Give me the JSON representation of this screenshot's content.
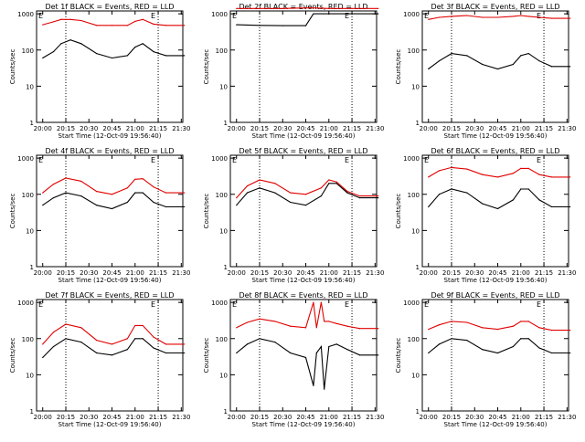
{
  "shared": {
    "xlabel": "Start Time (12-Oct-09 19:56:40)",
    "ylabel": "Counts/sec",
    "x_tick_labels": [
      "20:00",
      "20:15",
      "20:30",
      "20:45",
      "21:00",
      "21:15",
      "21:30"
    ],
    "y_tick_labels": [
      "1",
      "10",
      "100",
      "1000"
    ],
    "x_range_minutes": [
      0,
      95
    ],
    "y_range": [
      1,
      1200
    ],
    "y_scale": "log",
    "markers": [
      {
        "label": "E",
        "time": "20:15"
      },
      {
        "label": "E",
        "time": "21:15"
      }
    ],
    "series_colors": {
      "events": "#000000",
      "lld": "#e00000"
    }
  },
  "chart_data": [
    {
      "type": "line",
      "title": "Det 1f BLACK = Events, RED = LLD",
      "series": [
        {
          "values_time": [
            "20:00",
            "20:07",
            "20:12",
            "20:18",
            "20:25",
            "20:35",
            "20:45",
            "20:55",
            "21:00",
            "21:05",
            "21:12",
            "21:20",
            "21:32"
          ],
          "events": [
            60,
            90,
            150,
            190,
            150,
            80,
            60,
            70,
            120,
            150,
            90,
            70,
            70
          ],
          "lld": [
            500,
            600,
            700,
            700,
            650,
            480,
            480,
            480,
            620,
            700,
            520,
            480,
            480
          ]
        }
      ]
    },
    {
      "type": "line",
      "title": "Det 2f BLACK = Events, RED = LLD",
      "series": [
        {
          "values_time": [
            "20:00",
            "20:15",
            "20:30",
            "20:45",
            "20:50",
            "21:00",
            "21:15",
            "21:32"
          ],
          "events": [
            500,
            480,
            470,
            470,
            1000,
            1000,
            1000,
            1000
          ],
          "lld": [
            1400,
            1400,
            1400,
            1450,
            1450,
            1400,
            1400,
            1400
          ]
        }
      ]
    },
    {
      "type": "line",
      "title": "Det 3f BLACK = Events, RED = LLD",
      "series": [
        {
          "values_time": [
            "20:00",
            "20:07",
            "20:15",
            "20:25",
            "20:35",
            "20:45",
            "20:55",
            "21:00",
            "21:05",
            "21:12",
            "21:20",
            "21:32"
          ],
          "events": [
            30,
            50,
            80,
            70,
            40,
            30,
            40,
            70,
            80,
            50,
            35,
            35
          ],
          "lld": [
            700,
            800,
            850,
            900,
            800,
            800,
            850,
            900,
            850,
            800,
            750,
            750
          ]
        }
      ]
    },
    {
      "type": "line",
      "title": "Det 4f BLACK = Events, RED = LLD",
      "series": [
        {
          "values_time": [
            "20:00",
            "20:07",
            "20:15",
            "20:25",
            "20:35",
            "20:45",
            "20:55",
            "21:00",
            "21:05",
            "21:12",
            "21:20",
            "21:32"
          ],
          "events": [
            50,
            80,
            110,
            90,
            50,
            40,
            60,
            110,
            110,
            60,
            45,
            45
          ],
          "lld": [
            110,
            190,
            280,
            230,
            120,
            100,
            150,
            260,
            270,
            160,
            110,
            110
          ]
        }
      ]
    },
    {
      "type": "line",
      "title": "Det 5f BLACK = Events, RED = LLD",
      "series": [
        {
          "values_time": [
            "20:00",
            "20:07",
            "20:15",
            "20:25",
            "20:35",
            "20:45",
            "20:55",
            "21:00",
            "21:05",
            "21:12",
            "21:20",
            "21:32"
          ],
          "events": [
            50,
            110,
            150,
            110,
            60,
            50,
            90,
            200,
            200,
            110,
            80,
            80
          ],
          "lld": [
            80,
            170,
            250,
            200,
            110,
            100,
            150,
            250,
            220,
            120,
            90,
            90
          ]
        }
      ]
    },
    {
      "type": "line",
      "title": "Det 6f BLACK = Events, RED = LLD",
      "series": [
        {
          "values_time": [
            "20:00",
            "20:07",
            "20:15",
            "20:25",
            "20:35",
            "20:45",
            "20:55",
            "21:00",
            "21:05",
            "21:12",
            "21:20",
            "21:32"
          ],
          "events": [
            45,
            100,
            140,
            110,
            55,
            40,
            70,
            140,
            140,
            70,
            45,
            45
          ],
          "lld": [
            300,
            450,
            550,
            500,
            350,
            300,
            380,
            520,
            520,
            350,
            300,
            300
          ]
        }
      ]
    },
    {
      "type": "line",
      "title": "Det 7f BLACK = Events, RED = LLD",
      "series": [
        {
          "values_time": [
            "20:00",
            "20:07",
            "20:15",
            "20:25",
            "20:35",
            "20:45",
            "20:55",
            "21:00",
            "21:05",
            "21:12",
            "21:20",
            "21:32"
          ],
          "events": [
            30,
            60,
            100,
            80,
            40,
            35,
            50,
            100,
            100,
            55,
            40,
            40
          ],
          "lld": [
            70,
            150,
            250,
            200,
            90,
            70,
            100,
            230,
            230,
            110,
            70,
            70
          ]
        }
      ]
    },
    {
      "type": "line",
      "title": "Det 8f BLACK = Events, RED = LLD",
      "series": [
        {
          "values_time": [
            "20:00",
            "20:07",
            "20:15",
            "20:25",
            "20:35",
            "20:45",
            "20:50",
            "20:52",
            "20:55",
            "20:57",
            "21:00",
            "21:05",
            "21:12",
            "21:20",
            "21:32"
          ],
          "events": [
            40,
            70,
            100,
            80,
            40,
            30,
            5,
            40,
            60,
            4,
            60,
            70,
            50,
            35,
            35
          ],
          "lld": [
            200,
            280,
            350,
            300,
            220,
            200,
            1000,
            200,
            1000,
            300,
            300,
            260,
            220,
            190,
            190
          ]
        }
      ]
    },
    {
      "type": "line",
      "title": "Det 9f BLACK = Events, RED = LLD",
      "series": [
        {
          "values_time": [
            "20:00",
            "20:07",
            "20:15",
            "20:25",
            "20:35",
            "20:45",
            "20:55",
            "21:00",
            "21:05",
            "21:12",
            "21:20",
            "21:32"
          ],
          "events": [
            40,
            70,
            100,
            90,
            50,
            40,
            60,
            100,
            100,
            55,
            40,
            40
          ],
          "lld": [
            180,
            240,
            300,
            280,
            200,
            180,
            220,
            300,
            300,
            200,
            170,
            170
          ]
        }
      ]
    }
  ]
}
